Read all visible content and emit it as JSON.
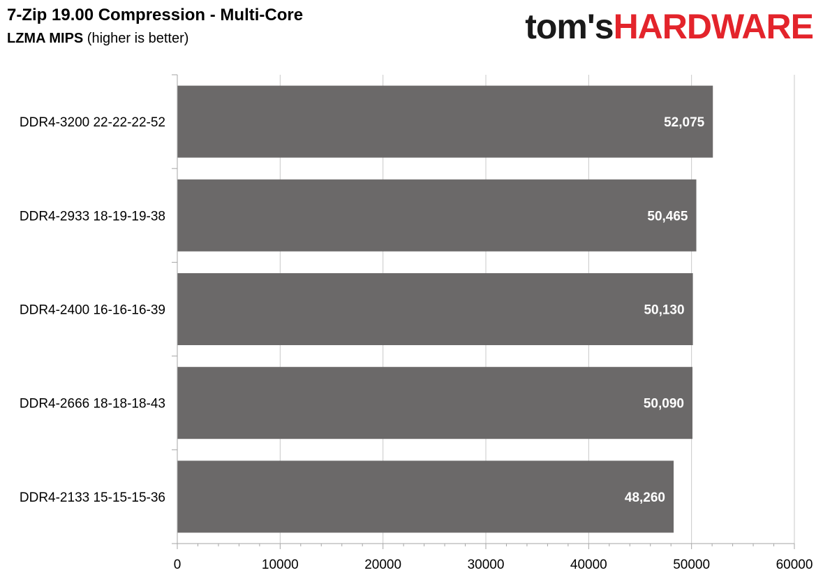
{
  "header": {
    "title": "7-Zip 19.00 Compression - Multi-Core",
    "subtitle_bold": "LZMA MIPS",
    "subtitle_rest": " (higher is better)"
  },
  "logo": {
    "part1": "tom's",
    "part2": "HARDWARE",
    "colors": {
      "part1": "#1a1a1a",
      "part2": "#e3242b"
    }
  },
  "chart_data": {
    "type": "bar",
    "orientation": "horizontal",
    "title": "7-Zip 19.00 Compression - Multi-Core",
    "subtitle": "LZMA MIPS (higher is better)",
    "categories": [
      "DDR4-3200 22-22-22-52",
      "DDR4-2933 18-19-19-38",
      "DDR4-2400 16-16-16-39",
      "DDR4-2666 18-18-18-43",
      "DDR4-2133 15-15-15-36"
    ],
    "values": [
      52075,
      50465,
      50130,
      50090,
      48260
    ],
    "data_labels": [
      "52,075",
      "50,465",
      "50,130",
      "50,090",
      "48,260"
    ],
    "xlim": [
      0,
      60000
    ],
    "x_ticks": [
      0,
      10000,
      20000,
      30000,
      40000,
      50000,
      60000
    ],
    "x_tick_labels": [
      "0",
      "10000",
      "20000",
      "30000",
      "40000",
      "50000",
      "60000"
    ],
    "grid": true,
    "legend": "none",
    "bar_color": "#6b6969"
  }
}
